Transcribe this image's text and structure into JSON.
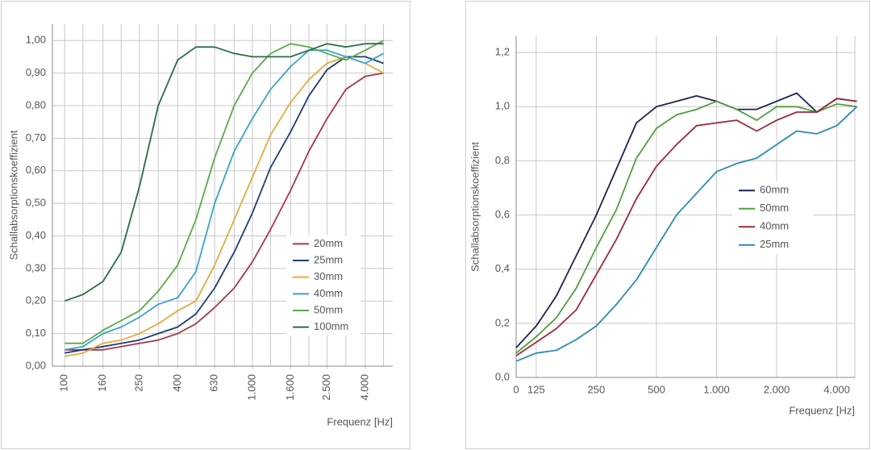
{
  "chart_data": [
    {
      "type": "line",
      "ylabel": "Schallabsorptionskoeffizient",
      "xlabel": "Frequenz [Hz]",
      "xscale": "log",
      "grid": true,
      "legend": "lower right",
      "x": [
        100,
        125,
        160,
        200,
        250,
        315,
        400,
        500,
        630,
        800,
        1000,
        1250,
        1600,
        2000,
        2500,
        3150,
        4000,
        5000
      ],
      "xlim": [
        86,
        5600
      ],
      "xticks": [
        100,
        160,
        250,
        400,
        630,
        {
          "value": 1000,
          "label": "1.000"
        },
        {
          "value": 1600,
          "label": "1.600"
        },
        {
          "value": 2500,
          "label": "2.500"
        },
        {
          "value": 4000,
          "label": "4.000"
        }
      ],
      "ylim": [
        0,
        1.05
      ],
      "yticks": [
        {
          "value": 0,
          "label": "0,00"
        },
        {
          "value": 0.1,
          "label": "0,10"
        },
        {
          "value": 0.2,
          "label": "0,20"
        },
        {
          "value": 0.3,
          "label": "0,30"
        },
        {
          "value": 0.4,
          "label": "0,40"
        },
        {
          "value": 0.5,
          "label": "0,50"
        },
        {
          "value": 0.6,
          "label": "0,60"
        },
        {
          "value": 0.7,
          "label": "0,70"
        },
        {
          "value": 0.8,
          "label": "0,80"
        },
        {
          "value": 0.9,
          "label": "0,90"
        },
        {
          "value": 1.0,
          "label": "1,00"
        }
      ],
      "series": [
        {
          "name": "20mm",
          "color": "#a8364a",
          "values": [
            0.05,
            0.05,
            0.05,
            0.06,
            0.07,
            0.08,
            0.1,
            0.13,
            0.18,
            0.24,
            0.32,
            0.42,
            0.54,
            0.66,
            0.76,
            0.85,
            0.89,
            0.9
          ]
        },
        {
          "name": "25mm",
          "color": "#1d3c78",
          "values": [
            0.04,
            0.05,
            0.06,
            0.07,
            0.08,
            0.1,
            0.12,
            0.16,
            0.24,
            0.35,
            0.47,
            0.61,
            0.72,
            0.83,
            0.91,
            0.95,
            0.95,
            0.93
          ]
        },
        {
          "name": "30mm",
          "color": "#e6a93c",
          "values": [
            0.03,
            0.04,
            0.07,
            0.08,
            0.1,
            0.13,
            0.17,
            0.2,
            0.31,
            0.45,
            0.58,
            0.71,
            0.81,
            0.88,
            0.93,
            0.95,
            0.93,
            0.9
          ]
        },
        {
          "name": "40mm",
          "color": "#3aa2cc",
          "values": [
            0.05,
            0.06,
            0.1,
            0.12,
            0.15,
            0.19,
            0.21,
            0.29,
            0.5,
            0.66,
            0.76,
            0.85,
            0.92,
            0.97,
            0.97,
            0.95,
            0.93,
            0.96
          ]
        },
        {
          "name": "50mm",
          "color": "#5aab48",
          "values": [
            0.07,
            0.07,
            0.11,
            0.14,
            0.17,
            0.23,
            0.31,
            0.45,
            0.64,
            0.8,
            0.9,
            0.96,
            0.99,
            0.98,
            0.96,
            0.94,
            0.97,
            1.0
          ]
        },
        {
          "name": "100mm",
          "color": "#2a6d44",
          "values": [
            0.2,
            0.22,
            0.26,
            0.35,
            0.55,
            0.8,
            0.94,
            0.98,
            0.98,
            0.96,
            0.95,
            0.95,
            0.95,
            0.97,
            0.99,
            0.98,
            0.99,
            0.99
          ]
        }
      ]
    },
    {
      "type": "line",
      "ylabel": "Schallabsorptionskoeffizient",
      "xlabel": "Frequenz [Hz]",
      "grid": true,
      "legend": "center right",
      "categories": [
        "0",
        "125",
        null,
        null,
        "250",
        null,
        null,
        "500",
        null,
        null,
        "1.000",
        null,
        null,
        "2.000",
        null,
        null,
        "4.000",
        null
      ],
      "ylim": [
        0,
        1.26
      ],
      "yticks": [
        {
          "value": 0,
          "label": "0,0"
        },
        {
          "value": 0.2,
          "label": "0,2"
        },
        {
          "value": 0.4,
          "label": "0,4"
        },
        {
          "value": 0.6,
          "label": "0,6"
        },
        {
          "value": 0.8,
          "label": "0,8"
        },
        {
          "value": 1.0,
          "label": "1,0"
        },
        {
          "value": 1.2,
          "label": "1,2"
        }
      ],
      "series": [
        {
          "name": "60mm",
          "color": "#1a2350",
          "values": [
            0.11,
            0.19,
            0.3,
            0.45,
            0.6,
            0.77,
            0.94,
            1.0,
            1.02,
            1.04,
            1.02,
            0.99,
            0.99,
            1.02,
            1.05,
            0.98,
            1.03,
            1.02
          ]
        },
        {
          "name": "50mm",
          "color": "#4fa03a",
          "values": [
            0.09,
            0.15,
            0.22,
            0.33,
            0.48,
            0.62,
            0.81,
            0.92,
            0.97,
            0.99,
            1.02,
            0.99,
            0.95,
            1.0,
            1.0,
            0.98,
            1.01,
            1.0
          ]
        },
        {
          "name": "40mm",
          "color": "#a0283a",
          "values": [
            0.08,
            0.13,
            0.18,
            0.25,
            0.38,
            0.51,
            0.66,
            0.78,
            0.86,
            0.93,
            0.94,
            0.95,
            0.91,
            0.95,
            0.98,
            0.98,
            1.03,
            1.02
          ]
        },
        {
          "name": "25mm",
          "color": "#2a8ab8",
          "values": [
            0.06,
            0.09,
            0.1,
            0.14,
            0.19,
            0.27,
            0.36,
            0.48,
            0.6,
            0.68,
            0.76,
            0.79,
            0.81,
            0.86,
            0.91,
            0.9,
            0.93,
            1.0
          ]
        }
      ]
    }
  ]
}
